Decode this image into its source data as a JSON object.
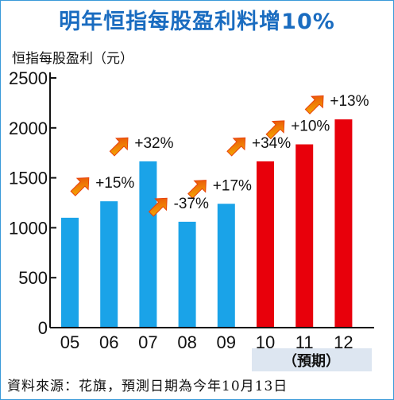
{
  "title": "明年恒指每股盈利料增10%",
  "ylabel": "恒指每股盈利（元）",
  "source": "資料來源：花旗，預測日期為今年10月13日",
  "forecast_label": "（預期）",
  "colors": {
    "actual": "#1aa3e8",
    "forecast": "#e8000b",
    "title": "#1a6cc0",
    "arrow_head": "#e8430c",
    "arrow_tail": "#f6b800"
  },
  "chart_data": {
    "type": "bar",
    "title": "明年恒指每股盈利料增10%",
    "xlabel": "",
    "ylabel": "恒指每股盈利（元）",
    "categories": [
      "05",
      "06",
      "07",
      "08",
      "09",
      "10",
      "11",
      "12"
    ],
    "values": [
      1100,
      1265,
      1665,
      1060,
      1240,
      1665,
      1835,
      2085
    ],
    "forecast_flags": [
      false,
      false,
      false,
      false,
      false,
      true,
      true,
      true
    ],
    "annotations": [
      "",
      "+15%",
      "+32%",
      "-37%",
      "+17%",
      "+34%",
      "+10%",
      "+13%"
    ],
    "yticks": [
      0,
      500,
      1000,
      1500,
      2000,
      2500
    ],
    "ylim": [
      0,
      2500
    ],
    "grid": false
  }
}
